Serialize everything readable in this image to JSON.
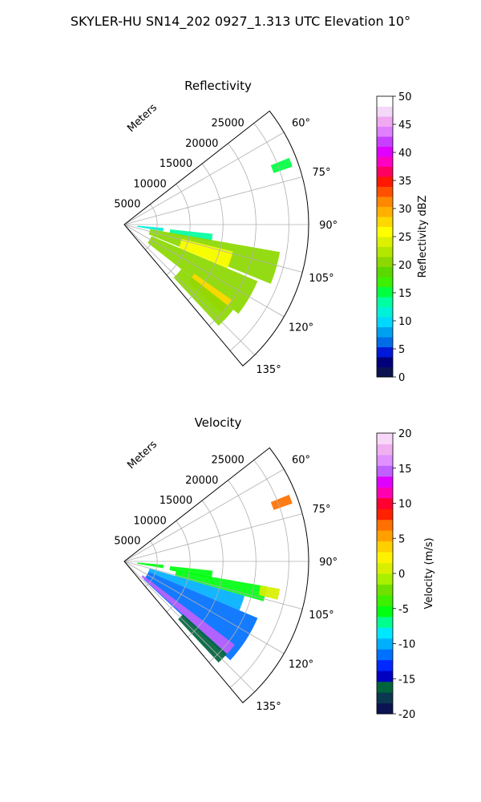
{
  "figure": {
    "title": "SKYLER-HU  SN14_202  0927_1.313 UTC Elevation 10°"
  },
  "chart_data": [
    {
      "type": "heatmap",
      "title": "Reflectivity",
      "radial_axis_label": "Meters",
      "radial_ticks": [
        "5000",
        "10000",
        "15000",
        "20000",
        "25000"
      ],
      "angle_ticks": [
        "60°",
        "75°",
        "90°",
        "105°",
        "120°",
        "135°"
      ],
      "range_limits": [
        0,
        28000
      ],
      "azimuth_limits_deg": [
        52,
        140
      ],
      "grid": true,
      "colorbar": {
        "label": "Reflectivity dBZ",
        "ticks": [
          "0",
          "5",
          "10",
          "15",
          "20",
          "25",
          "30",
          "35",
          "40",
          "45",
          "50"
        ],
        "range": [
          0,
          50
        ]
      },
      "echo_regions": [
        {
          "azimuth_deg": [
            95,
            100
          ],
          "range_m": [
            2000,
            6000
          ],
          "value": 12
        },
        {
          "azimuth_deg": [
            96,
            101
          ],
          "range_m": [
            7000,
            13500
          ],
          "value": 14
        },
        {
          "azimuth_deg": [
            100,
            112
          ],
          "range_m": [
            4000,
            24000
          ],
          "value": 20
        },
        {
          "azimuth_deg": [
            104,
            113
          ],
          "range_m": [
            9000,
            17000
          ],
          "value": 25
        },
        {
          "azimuth_deg": [
            113,
            128
          ],
          "range_m": [
            4500,
            22000
          ],
          "value": 20
        },
        {
          "azimuth_deg": [
            125,
            132
          ],
          "range_m": [
            13000,
            20000
          ],
          "value": 28
        },
        {
          "azimuth_deg": [
            128,
            137
          ],
          "range_m": [
            11000,
            21000
          ],
          "value": 20
        },
        {
          "azimuth_deg": [
            68,
            71
          ],
          "range_m": [
            24000,
            27000
          ],
          "value": 16
        }
      ]
    },
    {
      "type": "heatmap",
      "title": "Velocity",
      "radial_axis_label": "Meters",
      "radial_ticks": [
        "5000",
        "10000",
        "15000",
        "20000",
        "25000"
      ],
      "angle_ticks": [
        "60°",
        "75°",
        "90°",
        "105°",
        "120°",
        "135°"
      ],
      "range_limits": [
        0,
        28000
      ],
      "azimuth_limits_deg": [
        52,
        140
      ],
      "grid": true,
      "colorbar": {
        "label": "Velocity (m/s)",
        "ticks": [
          "-20",
          "-15",
          "-10",
          "-5",
          "0",
          "5",
          "10",
          "15",
          "20"
        ],
        "range": [
          -20,
          20
        ]
      },
      "echo_regions": [
        {
          "azimuth_deg": [
            95,
            100
          ],
          "range_m": [
            2000,
            6000
          ],
          "value": -5
        },
        {
          "azimuth_deg": [
            96,
            101
          ],
          "range_m": [
            7000,
            13500
          ],
          "value": -6
        },
        {
          "azimuth_deg": [
            100,
            106
          ],
          "range_m": [
            8000,
            22000
          ],
          "value": -5
        },
        {
          "azimuth_deg": [
            100,
            104
          ],
          "range_m": [
            21000,
            24000
          ],
          "value": 0
        },
        {
          "azimuth_deg": [
            106,
            113
          ],
          "range_m": [
            4000,
            19000
          ],
          "value": -10
        },
        {
          "azimuth_deg": [
            113,
            133
          ],
          "range_m": [
            4000,
            22000
          ],
          "value": -12
        },
        {
          "azimuth_deg": [
            127,
            132
          ],
          "range_m": [
            3500,
            21000
          ],
          "value": 15
        },
        {
          "azimuth_deg": [
            132,
            137
          ],
          "range_m": [
            12000,
            21000
          ],
          "value": -16
        },
        {
          "azimuth_deg": [
            68,
            71
          ],
          "range_m": [
            24000,
            27000
          ],
          "value": 7
        }
      ]
    }
  ],
  "colors": {
    "grid": "#b0b0b0",
    "reflectivity_scale": [
      "#0a1452",
      "#00007a",
      "#0018d8",
      "#006ce8",
      "#00a0f0",
      "#00d8ff",
      "#00f0d8",
      "#00ffa0",
      "#00ff40",
      "#3cf000",
      "#5ad800",
      "#8cd800",
      "#b4e600",
      "#dcf000",
      "#ffff00",
      "#ffd800",
      "#ffb000",
      "#ff8800",
      "#ff5000",
      "#ff1800",
      "#ff0060",
      "#ff00c0",
      "#e000ff",
      "#c840ff",
      "#e080ff",
      "#f0a8f0",
      "#f4d8f8",
      "#ffffff"
    ],
    "velocity_scale": [
      "#0a1452",
      "#0a3850",
      "#00643c",
      "#0000c0",
      "#0028ff",
      "#0070ff",
      "#00b0ff",
      "#00e8ff",
      "#00ff90",
      "#00ff10",
      "#3cf000",
      "#70e000",
      "#a8f000",
      "#d8f000",
      "#fff200",
      "#ffd000",
      "#ffa000",
      "#ff7000",
      "#ff2000",
      "#ff0030",
      "#ff00b0",
      "#e000ff",
      "#c060ff",
      "#e090ff",
      "#f0b0f0",
      "#f8d8f8"
    ]
  }
}
